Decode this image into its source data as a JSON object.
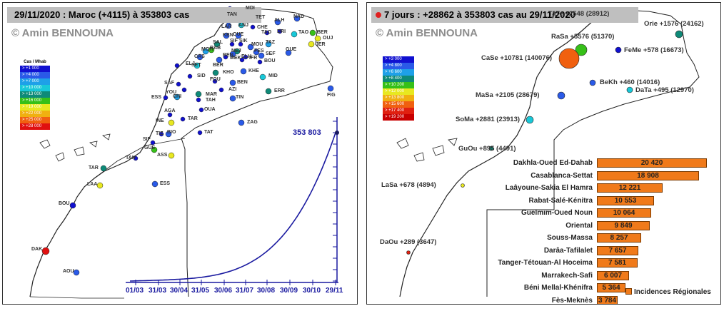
{
  "left": {
    "title": "29/11/2020 : Maroc (+4115) à 353803 cas",
    "copyright": "© Amin BENNOUNA",
    "legend_title": "Cas / Mhab",
    "legend": [
      {
        "label": "> +1 000",
        "color": "#1010d0"
      },
      {
        "label": "> +4 000",
        "color": "#2a5ae8"
      },
      {
        "label": "> +7 000",
        "color": "#1ea0e8"
      },
      {
        "label": "> +10 000",
        "color": "#18c8d8"
      },
      {
        "label": "> +13 000",
        "color": "#0e8a78"
      },
      {
        "label": "> +16 000",
        "color": "#36c018"
      },
      {
        "label": "> +19 000",
        "color": "#e8e820"
      },
      {
        "label": "> +22 000",
        "color": "#f0b010"
      },
      {
        "label": "> +25 000",
        "color": "#f06010"
      },
      {
        "label": "> +28 000",
        "color": "#e01010"
      }
    ],
    "cities": [
      {
        "name": "MDI"
      },
      {
        "name": "TAN"
      },
      {
        "name": "TET"
      },
      {
        "name": "LAR"
      },
      {
        "name": "ANJ"
      },
      {
        "name": "CHE"
      },
      {
        "name": "ALH"
      },
      {
        "name": "NAD"
      },
      {
        "name": "KEN"
      },
      {
        "name": "OUE"
      },
      {
        "name": "TAO"
      },
      {
        "name": "DRI"
      },
      {
        "name": "TAO"
      },
      {
        "name": "BER"
      },
      {
        "name": "OUJ"
      },
      {
        "name": "SAL"
      },
      {
        "name": "SIF"
      },
      {
        "name": "SIK"
      },
      {
        "name": "TAZ"
      },
      {
        "name": "MOU"
      },
      {
        "name": "JER"
      },
      {
        "name": "MOH"
      },
      {
        "name": "RAB"
      },
      {
        "name": "NEJ"
      },
      {
        "name": "FES"
      },
      {
        "name": "SEF"
      },
      {
        "name": "GUE"
      },
      {
        "name": "BEN"
      },
      {
        "name": "MEK"
      },
      {
        "name": "BOU"
      },
      {
        "name": "CAS"
      },
      {
        "name": "ELH"
      },
      {
        "name": "IFR"
      },
      {
        "name": "SET"
      },
      {
        "name": "BER"
      },
      {
        "name": "ELJ"
      },
      {
        "name": "KHO"
      },
      {
        "name": "KHE"
      },
      {
        "name": "SAF"
      },
      {
        "name": "SID"
      },
      {
        "name": "MID"
      },
      {
        "name": "FQU"
      },
      {
        "name": "BEN"
      },
      {
        "name": "YOU"
      },
      {
        "name": "AZI"
      },
      {
        "name": "ERR"
      },
      {
        "name": "ESS"
      },
      {
        "name": "CHI"
      },
      {
        "name": "MAR"
      },
      {
        "name": "TAH"
      },
      {
        "name": "TIN"
      },
      {
        "name": "FIG"
      },
      {
        "name": "OUA"
      },
      {
        "name": "AGA"
      },
      {
        "name": "INE"
      },
      {
        "name": "TAR"
      },
      {
        "name": "ZAG"
      },
      {
        "name": "TIZ"
      },
      {
        "name": "BIO"
      },
      {
        "name": "TAT"
      },
      {
        "name": "SIF"
      },
      {
        "name": "GUE"
      },
      {
        "name": "ASS"
      },
      {
        "name": "TAN"
      },
      {
        "name": "TAR"
      },
      {
        "name": "ESS"
      },
      {
        "name": "LAA"
      },
      {
        "name": "BOU"
      },
      {
        "name": "DAK"
      },
      {
        "name": "AOU"
      }
    ],
    "chart": {
      "x_labels": [
        "01/03",
        "31/03",
        "30/04",
        "31/05",
        "30/06",
        "31/07",
        "30/08",
        "30/09",
        "30/10",
        "29/11"
      ],
      "total_label": "353 803"
    }
  },
  "right": {
    "title": "7 jours : +28862 à 353803 cas au 29/11/2020",
    "copyright": "© Amin BENNOUNA",
    "legend": [
      {
        "label": "> +3 000",
        "color": "#1010d0"
      },
      {
        "label": "> +4 800",
        "color": "#2a5ae8"
      },
      {
        "label": "> +6 600",
        "color": "#1ea0e8"
      },
      {
        "label": "> +8 400",
        "color": "#0e8a78"
      },
      {
        "label": "> +10 200",
        "color": "#36c018"
      },
      {
        "label": "> +12 000",
        "color": "#e8e820"
      },
      {
        "label": "> +13 800",
        "color": "#f0b010"
      },
      {
        "label": "> +15 600",
        "color": "#f06010"
      },
      {
        "label": "> +17 400",
        "color": "#e02010"
      },
      {
        "label": "> +19 200",
        "color": "#c80000"
      }
    ],
    "regions": [
      {
        "label": "TaTe +2548 (28912)"
      },
      {
        "label": "Orie +1576 (24162)"
      },
      {
        "label": "RaSa +5576 (51370)"
      },
      {
        "label": "FeMe +578 (16673)"
      },
      {
        "label": "CaSe +10781 (140076)"
      },
      {
        "label": "BeKh +460 (14016)"
      },
      {
        "label": "DaTa +495 (12970)"
      },
      {
        "label": "MaSa +2105 (28679)"
      },
      {
        "label": "SoMa +2881 (23913)"
      },
      {
        "label": "GuOu +895 (4491)"
      },
      {
        "label": "LaSa +678 (4894)"
      },
      {
        "label": "DaOu +289 (3647)"
      }
    ],
    "bars": [
      {
        "name": "Dakhla-Oued Ed-Dahab",
        "value": 20420,
        "label": "20 420"
      },
      {
        "name": "Casablanca-Settat",
        "value": 18908,
        "label": "18 908"
      },
      {
        "name": "Laâyoune-Sakia El Hamra",
        "value": 12221,
        "label": "12 221"
      },
      {
        "name": "Rabat-Salé-Kénitra",
        "value": 10553,
        "label": "10 553"
      },
      {
        "name": "Guelmim-Oued Noun",
        "value": 10064,
        "label": "10 064"
      },
      {
        "name": "Oriental",
        "value": 9849,
        "label": "9 849"
      },
      {
        "name": "Souss-Massa",
        "value": 8257,
        "label": "8 257"
      },
      {
        "name": "Darâa-Tafilalet",
        "value": 7657,
        "label": "7 657"
      },
      {
        "name": "Tanger-Tétouan-Al Hoceima",
        "value": 7581,
        "label": "7 581"
      },
      {
        "name": "Marrakech-Safi",
        "value": 6007,
        "label": "6 007"
      },
      {
        "name": "Béni Mellal-Khénifra",
        "value": 5364,
        "label": "5 364"
      },
      {
        "name": "Fès-Meknès",
        "value": 3784,
        "label": "3 784"
      }
    ],
    "bar_legend": "Incidences Régionales"
  }
}
